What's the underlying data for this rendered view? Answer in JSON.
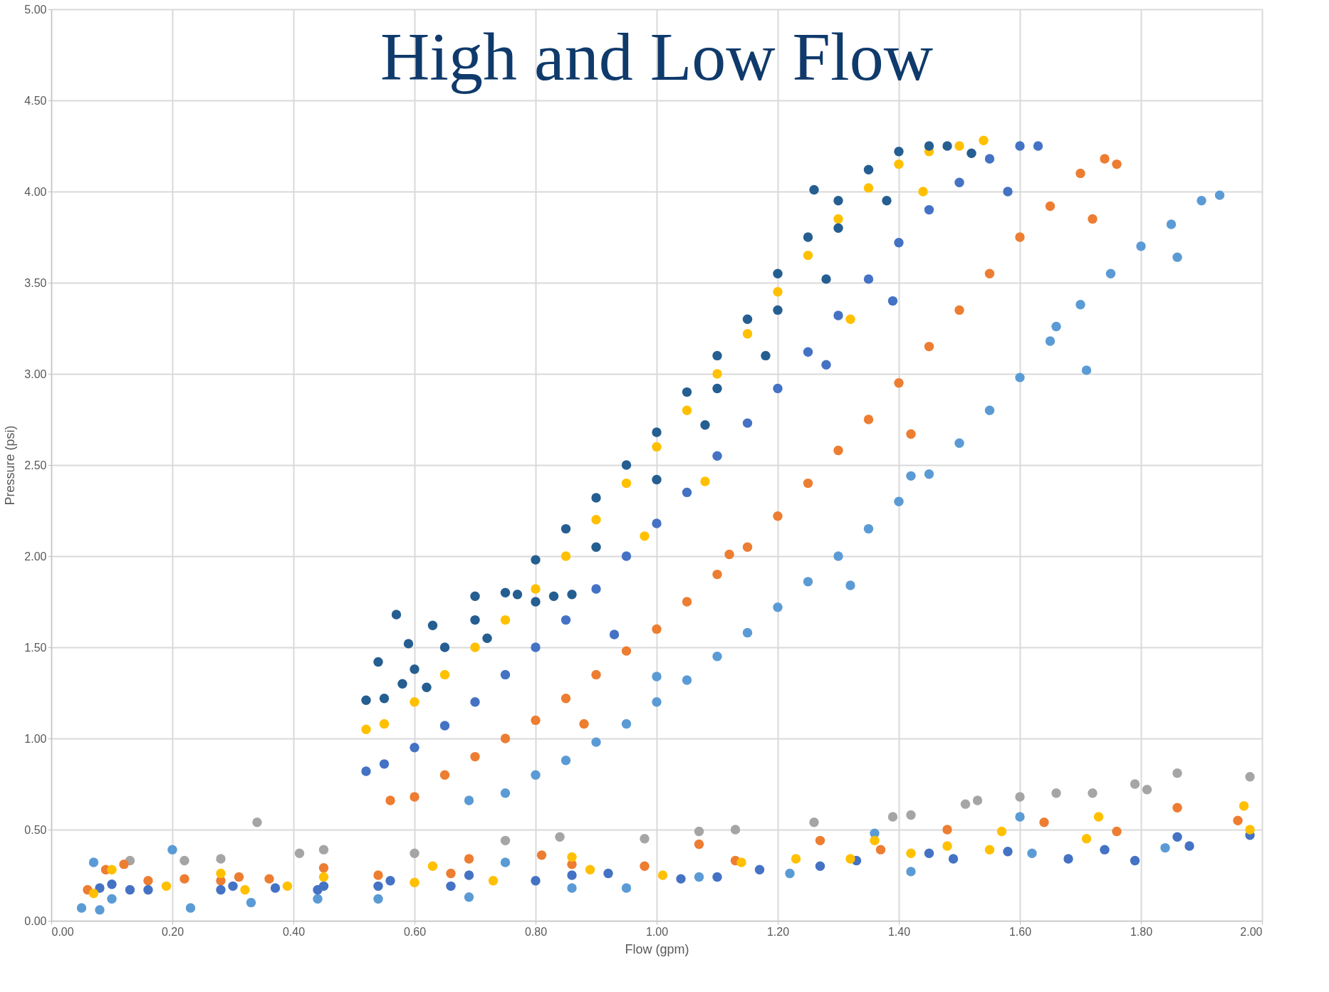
{
  "chart_data": {
    "type": "scatter",
    "title": "High and Low Flow",
    "xlabel": "Flow (gpm)",
    "ylabel": "Pressure (psi)",
    "xlim": [
      0,
      2
    ],
    "ylim": [
      0,
      5
    ],
    "xticks": [
      {
        "value": 0,
        "label": "0.00"
      },
      {
        "value": 0.2,
        "label": "0.20"
      },
      {
        "value": 0.4,
        "label": "0.40"
      },
      {
        "value": 0.6,
        "label": "0.60"
      },
      {
        "value": 0.8,
        "label": "0.80"
      },
      {
        "value": 1,
        "label": "1.00"
      },
      {
        "value": 1.2,
        "label": "1.20"
      },
      {
        "value": 1.4,
        "label": "1.40"
      },
      {
        "value": 1.6,
        "label": "1.60"
      },
      {
        "value": 1.8,
        "label": "1.80"
      },
      {
        "value": 2,
        "label": "2.00"
      }
    ],
    "yticks": [
      {
        "value": 0,
        "label": "0.00"
      },
      {
        "value": 0.5,
        "label": "0.50"
      },
      {
        "value": 1,
        "label": "1.00"
      },
      {
        "value": 1.5,
        "label": "1.50"
      },
      {
        "value": 2,
        "label": "2.00"
      },
      {
        "value": 2.5,
        "label": "2.50"
      },
      {
        "value": 3,
        "label": "3.00"
      },
      {
        "value": 3.5,
        "label": "3.50"
      },
      {
        "value": 4,
        "label": "4.00"
      },
      {
        "value": 4.5,
        "label": "4.50"
      },
      {
        "value": 5,
        "label": "5.00"
      }
    ],
    "grid": true,
    "legend": false,
    "marker": "circle",
    "series": [
      {
        "color": "#a5a5a5",
        "x": [
          0.13,
          0.22,
          0.28,
          0.34,
          0.41,
          0.45,
          0.6,
          0.75,
          0.84,
          0.98,
          1.07,
          1.13,
          1.26,
          1.39,
          1.42,
          1.51,
          1.53,
          1.6,
          1.66,
          1.72,
          1.79,
          1.81,
          1.86,
          1.98
        ],
        "values": [
          0.33,
          0.33,
          0.34,
          0.54,
          0.37,
          0.39,
          0.37,
          0.44,
          0.46,
          0.45,
          0.49,
          0.5,
          0.54,
          0.57,
          0.58,
          0.64,
          0.66,
          0.68,
          0.7,
          0.7,
          0.75,
          0.72,
          0.81,
          0.79
        ]
      },
      {
        "color": "#5b9bd5",
        "x": [
          0.05,
          0.07,
          0.08,
          0.1,
          0.2,
          0.23,
          0.33,
          0.44,
          0.54,
          0.69,
          0.75,
          0.86,
          0.95,
          1.07,
          1.22,
          1.36,
          1.42,
          1.6,
          1.62,
          1.84,
          0.69,
          0.75,
          0.8,
          0.85,
          0.9,
          0.95,
          1.0,
          1.05,
          1.1,
          1.15,
          1.2,
          1.25,
          1.3,
          1.35,
          1.4,
          1.45,
          1.5,
          1.55,
          1.6,
          1.65,
          1.7,
          1.75,
          1.8,
          1.85,
          1.9,
          1.93,
          1.0,
          1.32,
          1.42,
          1.66,
          1.71,
          1.86
        ],
        "values": [
          0.07,
          0.32,
          0.06,
          0.12,
          0.39,
          0.07,
          0.1,
          0.12,
          0.12,
          0.13,
          0.32,
          0.18,
          0.18,
          0.24,
          0.26,
          0.48,
          0.27,
          0.57,
          0.37,
          0.4,
          0.66,
          0.7,
          0.8,
          0.88,
          0.98,
          1.08,
          1.2,
          1.32,
          1.45,
          1.58,
          1.72,
          1.86,
          2.0,
          2.15,
          2.3,
          2.45,
          2.62,
          2.8,
          2.98,
          3.18,
          3.38,
          3.55,
          3.7,
          3.82,
          3.95,
          3.98,
          1.34,
          1.84,
          2.44,
          3.26,
          3.02,
          3.64
        ]
      },
      {
        "color": "#ed7d31",
        "x": [
          0.06,
          0.09,
          0.12,
          0.16,
          0.22,
          0.28,
          0.31,
          0.36,
          0.45,
          0.54,
          0.66,
          0.69,
          0.81,
          0.86,
          0.98,
          1.07,
          1.13,
          1.27,
          1.37,
          1.48,
          1.64,
          1.76,
          1.86,
          1.96,
          0.56,
          0.6,
          0.65,
          0.7,
          0.75,
          0.8,
          0.85,
          0.9,
          0.95,
          1.0,
          1.05,
          1.1,
          1.15,
          1.2,
          1.25,
          1.3,
          1.35,
          1.4,
          1.45,
          1.5,
          1.55,
          1.6,
          1.65,
          1.7,
          1.74,
          1.76,
          0.88,
          1.12,
          1.42,
          1.72
        ],
        "values": [
          0.17,
          0.28,
          0.31,
          0.22,
          0.23,
          0.22,
          0.24,
          0.23,
          0.29,
          0.25,
          0.26,
          0.34,
          0.36,
          0.31,
          0.3,
          0.42,
          0.33,
          0.44,
          0.39,
          0.5,
          0.54,
          0.49,
          0.62,
          0.55,
          0.66,
          0.68,
          0.8,
          0.9,
          1.0,
          1.1,
          1.22,
          1.35,
          1.48,
          1.6,
          1.75,
          1.9,
          2.05,
          2.22,
          2.4,
          2.58,
          2.75,
          2.95,
          3.15,
          3.35,
          3.55,
          3.75,
          3.92,
          4.1,
          4.18,
          4.15,
          1.08,
          2.01,
          2.67,
          3.85
        ]
      },
      {
        "color": "#4472c4",
        "x": [
          0.08,
          0.1,
          0.13,
          0.16,
          0.28,
          0.3,
          0.37,
          0.44,
          0.45,
          0.54,
          0.56,
          0.66,
          0.69,
          0.8,
          0.86,
          0.92,
          1.04,
          1.1,
          1.17,
          1.27,
          1.33,
          1.45,
          1.49,
          1.58,
          1.68,
          1.74,
          1.79,
          1.86,
          1.88,
          1.98,
          0.52,
          0.55,
          0.6,
          0.65,
          0.7,
          0.75,
          0.8,
          0.85,
          0.9,
          0.95,
          1.0,
          1.05,
          1.1,
          1.15,
          1.2,
          1.25,
          1.3,
          1.35,
          1.4,
          1.45,
          1.5,
          1.55,
          1.6,
          1.63,
          0.93,
          1.28,
          1.39,
          1.58
        ],
        "values": [
          0.18,
          0.2,
          0.17,
          0.17,
          0.17,
          0.19,
          0.18,
          0.17,
          0.19,
          0.19,
          0.22,
          0.19,
          0.25,
          0.22,
          0.25,
          0.26,
          0.23,
          0.24,
          0.28,
          0.3,
          0.33,
          0.37,
          0.34,
          0.38,
          0.34,
          0.39,
          0.33,
          0.46,
          0.41,
          0.47,
          0.82,
          0.86,
          0.95,
          1.07,
          1.2,
          1.35,
          1.5,
          1.65,
          1.82,
          2.0,
          2.18,
          2.35,
          2.55,
          2.73,
          2.92,
          3.12,
          3.32,
          3.52,
          3.72,
          3.9,
          4.05,
          4.18,
          4.25,
          4.25,
          1.57,
          3.05,
          3.4,
          4.0
        ]
      },
      {
        "color": "#ffc000",
        "x": [
          0.07,
          0.1,
          0.19,
          0.28,
          0.32,
          0.39,
          0.45,
          0.6,
          0.63,
          0.73,
          0.86,
          0.89,
          1.01,
          1.14,
          1.23,
          1.32,
          1.36,
          1.42,
          1.48,
          1.55,
          1.57,
          1.71,
          1.73,
          1.97,
          1.98,
          0.52,
          0.55,
          0.6,
          0.65,
          0.7,
          0.75,
          0.8,
          0.85,
          0.9,
          0.95,
          1.0,
          1.05,
          1.1,
          1.15,
          1.2,
          1.25,
          1.3,
          1.35,
          1.4,
          1.45,
          1.5,
          1.54,
          0.98,
          1.08,
          1.32,
          1.44
        ],
        "values": [
          0.15,
          0.28,
          0.19,
          0.26,
          0.17,
          0.19,
          0.24,
          0.21,
          0.3,
          0.22,
          0.35,
          0.28,
          0.25,
          0.32,
          0.34,
          0.34,
          0.44,
          0.37,
          0.41,
          0.39,
          0.49,
          0.45,
          0.57,
          0.63,
          0.5,
          1.05,
          1.08,
          1.2,
          1.35,
          1.5,
          1.65,
          1.82,
          2.0,
          2.2,
          2.4,
          2.6,
          2.8,
          3.0,
          3.22,
          3.45,
          3.65,
          3.85,
          4.02,
          4.15,
          4.22,
          4.25,
          4.28,
          2.11,
          2.41,
          3.3,
          4.0
        ]
      },
      {
        "color": "#255e91",
        "x": [
          0.52,
          0.55,
          0.58,
          0.6,
          0.65,
          0.7,
          0.75,
          0.8,
          0.85,
          0.9,
          0.95,
          1.0,
          1.05,
          1.1,
          1.15,
          1.2,
          1.25,
          1.3,
          1.35,
          1.4,
          1.45,
          1.48,
          0.57,
          0.59,
          0.54,
          0.63,
          0.7,
          0.77,
          0.83,
          0.86,
          1.26,
          1.1,
          1.2,
          1.3,
          1.52,
          0.62,
          0.72,
          0.8,
          0.9,
          1.0,
          1.08,
          1.18,
          1.28,
          1.38
        ],
        "values": [
          1.21,
          1.22,
          1.3,
          1.38,
          1.5,
          1.65,
          1.8,
          1.98,
          2.15,
          2.32,
          2.5,
          2.68,
          2.9,
          3.1,
          3.3,
          3.55,
          3.75,
          3.95,
          4.12,
          4.22,
          4.25,
          4.25,
          1.68,
          1.52,
          1.42,
          1.62,
          1.78,
          1.79,
          1.78,
          1.79,
          4.01,
          2.92,
          3.35,
          3.8,
          4.21,
          1.28,
          1.55,
          1.75,
          2.05,
          2.42,
          2.72,
          3.1,
          3.52,
          3.95
        ]
      }
    ]
  }
}
